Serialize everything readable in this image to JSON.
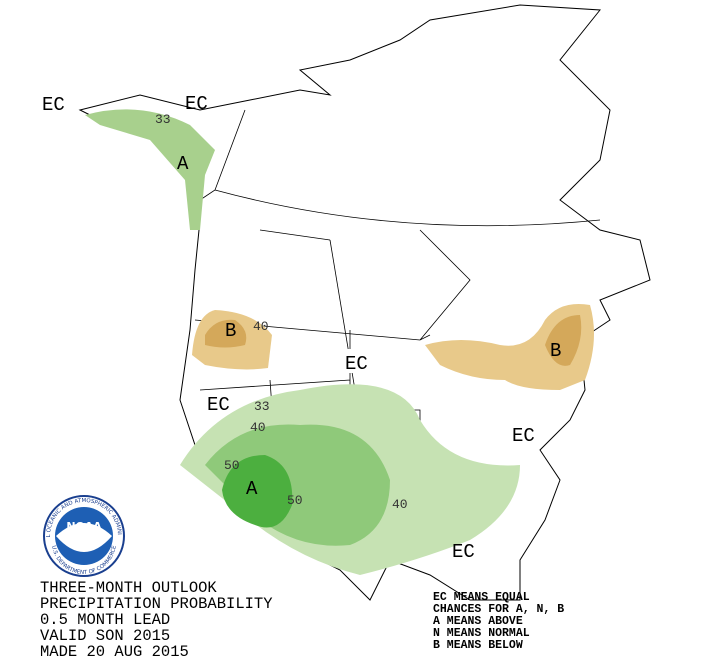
{
  "map": {
    "region_labels": [
      "EC",
      "EC",
      "EC",
      "EC",
      "EC",
      "EC",
      "A",
      "A",
      "B",
      "B"
    ],
    "contour_labels": [
      "33",
      "40",
      "33",
      "40",
      "50",
      "50",
      "40"
    ]
  },
  "logo": {
    "text": "NOAA",
    "agency": "NATIONAL OCEANIC AND ATMOSPHERIC ADMINISTRATION",
    "department": "U.S. DEPARTMENT OF COMMERCE"
  },
  "title_lines": [
    "THREE-MONTH OUTLOOK",
    "PRECIPITATION PROBABILITY",
    "0.5 MONTH LEAD",
    "VALID SON 2015",
    "MADE 20 AUG 2015"
  ],
  "legend_lines": [
    "EC MEANS EQUAL",
    "CHANCES FOR A, N, B",
    "A MEANS ABOVE",
    "N MEANS NORMAL",
    "B MEANS BELOW"
  ]
}
